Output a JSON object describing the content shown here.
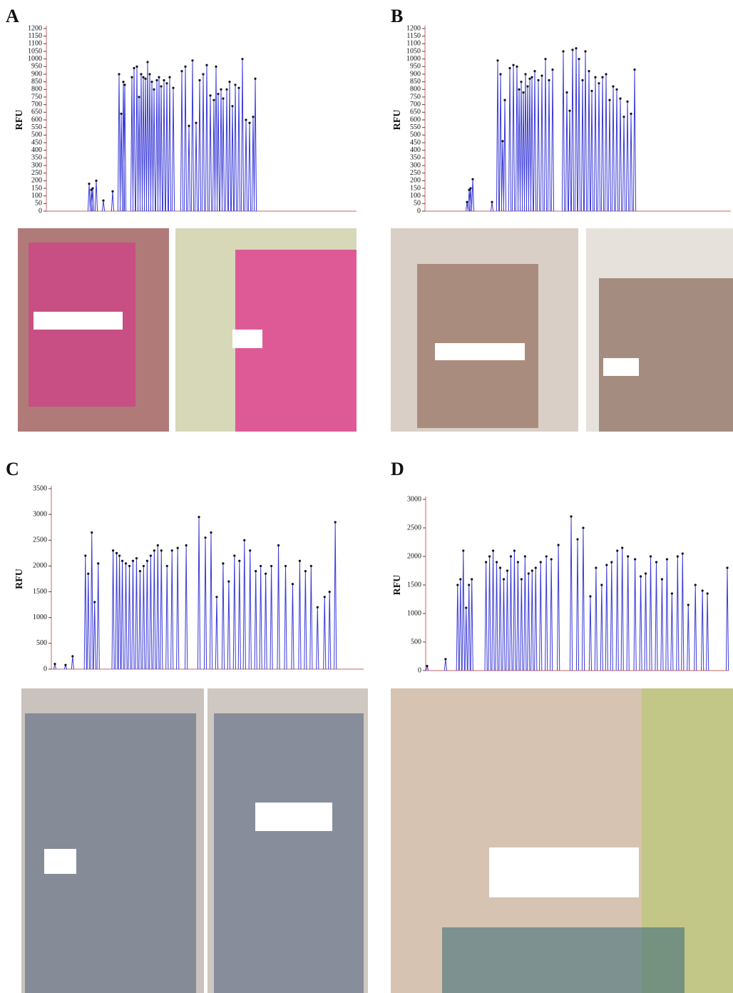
{
  "chart_data": [
    {
      "type": "peaks",
      "title": "A",
      "y_label": "RFU",
      "color": "#3b3bd8",
      "ylim": [
        0,
        1200
      ],
      "yticks": [
        0,
        50,
        100,
        150,
        200,
        250,
        300,
        350,
        400,
        450,
        500,
        550,
        600,
        650,
        700,
        750,
        800,
        850,
        900,
        950,
        1000,
        1050,
        1100,
        1150,
        1200
      ],
      "xlim": [
        65,
        500
      ],
      "x": [
        125,
        128,
        130,
        135,
        145,
        158,
        167,
        170,
        173,
        175,
        185,
        188,
        192,
        195,
        198,
        201,
        204,
        207,
        210,
        213,
        216,
        220,
        223,
        226,
        230,
        234,
        238,
        243,
        255,
        260,
        265,
        270,
        275,
        280,
        285,
        290,
        295,
        300,
        303,
        306,
        310,
        313,
        318,
        322,
        326,
        330,
        335,
        340,
        345,
        350,
        355,
        358
      ],
      "values": [
        180,
        140,
        150,
        200,
        70,
        130,
        900,
        640,
        850,
        830,
        880,
        940,
        950,
        750,
        900,
        880,
        870,
        980,
        900,
        850,
        800,
        860,
        880,
        820,
        860,
        840,
        880,
        810,
        920,
        950,
        560,
        990,
        580,
        860,
        900,
        960,
        760,
        730,
        950,
        770,
        800,
        740,
        800,
        850,
        690,
        830,
        810,
        1000,
        600,
        580,
        620,
        870
      ]
    },
    {
      "type": "peaks",
      "title": "B",
      "y_label": "RFU",
      "color": "#3b3bd8",
      "ylim": [
        0,
        1200
      ],
      "yticks": [
        0,
        50,
        100,
        150,
        200,
        250,
        300,
        350,
        400,
        450,
        500,
        550,
        600,
        650,
        700,
        750,
        800,
        850,
        900,
        950,
        1000,
        1050,
        1100,
        1150,
        1200
      ],
      "xlim": [
        596,
        1025
      ],
      "x": [
        655,
        658,
        660,
        663,
        690,
        698,
        702,
        705,
        708,
        715,
        720,
        725,
        728,
        731,
        734,
        737,
        740,
        743,
        746,
        750,
        755,
        760,
        765,
        770,
        775,
        790,
        795,
        799,
        803,
        808,
        812,
        817,
        821,
        826,
        830,
        835,
        840,
        845,
        850,
        855,
        860,
        865,
        870,
        875,
        880,
        885,
        890
      ],
      "values": [
        60,
        140,
        150,
        210,
        60,
        990,
        900,
        460,
        730,
        940,
        960,
        950,
        800,
        850,
        780,
        900,
        820,
        870,
        880,
        920,
        860,
        890,
        1000,
        860,
        930,
        1050,
        780,
        660,
        1060,
        1070,
        1000,
        860,
        1050,
        920,
        790,
        880,
        840,
        880,
        900,
        730,
        820,
        800,
        740,
        620,
        720,
        640,
        930
      ]
    },
    {
      "type": "peaks",
      "title": "C",
      "y_label": "RFU",
      "color": "#3b3bd8",
      "ylim": [
        0,
        3500
      ],
      "yticks": [
        0,
        500,
        1000,
        1500,
        2000,
        2500,
        3000,
        3500
      ],
      "xlim": [
        70,
        510
      ],
      "x": [
        75,
        90,
        100,
        118,
        122,
        127,
        131,
        136,
        157,
        162,
        166,
        170,
        175,
        180,
        185,
        190,
        195,
        200,
        205,
        210,
        215,
        220,
        225,
        233,
        240,
        248,
        260,
        278,
        287,
        295,
        303,
        312,
        320,
        328,
        335,
        342,
        350,
        358,
        365,
        372,
        380,
        390,
        400,
        410,
        420,
        428,
        436,
        445,
        455,
        462,
        470
      ],
      "values": [
        100,
        80,
        250,
        2200,
        1850,
        2650,
        1300,
        2050,
        2300,
        2250,
        2200,
        2100,
        2050,
        2000,
        2100,
        2150,
        1900,
        2000,
        2100,
        2200,
        2300,
        2400,
        2300,
        2000,
        2300,
        2350,
        2400,
        2950,
        2550,
        2650,
        1400,
        2050,
        1700,
        2200,
        2100,
        2500,
        2300,
        1900,
        2000,
        1850,
        2000,
        2400,
        2000,
        1650,
        2100,
        1900,
        2000,
        1200,
        1400,
        1500,
        2850
      ]
    },
    {
      "type": "peaks",
      "title": "D",
      "y_label": "RFU",
      "color": "#3b3bd8",
      "ylim": [
        0,
        3000
      ],
      "yticks": [
        0,
        500,
        1000,
        1500,
        2000,
        2500,
        3000
      ],
      "xlim": [
        595,
        1022
      ],
      "x": [
        597,
        623,
        640,
        644,
        648,
        652,
        656,
        660,
        680,
        685,
        690,
        695,
        700,
        705,
        710,
        715,
        720,
        725,
        730,
        735,
        740,
        745,
        750,
        757,
        765,
        772,
        782,
        800,
        809,
        817,
        827,
        835,
        843,
        850,
        857,
        865,
        872,
        880,
        890,
        898,
        905,
        912,
        920,
        928,
        935,
        942,
        950,
        957,
        965,
        975,
        985,
        992,
        1020
      ],
      "values": [
        80,
        200,
        1500,
        1600,
        2100,
        1100,
        1500,
        1600,
        1900,
        2000,
        2100,
        1900,
        1800,
        1600,
        1750,
        2000,
        2100,
        1900,
        1600,
        2000,
        1700,
        1750,
        1800,
        1900,
        2000,
        1950,
        2200,
        2700,
        2300,
        2500,
        1300,
        1800,
        1500,
        1850,
        1900,
        2100,
        2150,
        2000,
        1950,
        1650,
        1700,
        2000,
        1900,
        1600,
        1950,
        1350,
        2000,
        2050,
        1150,
        1500,
        1400,
        1350,
        1800
      ]
    }
  ]
}
